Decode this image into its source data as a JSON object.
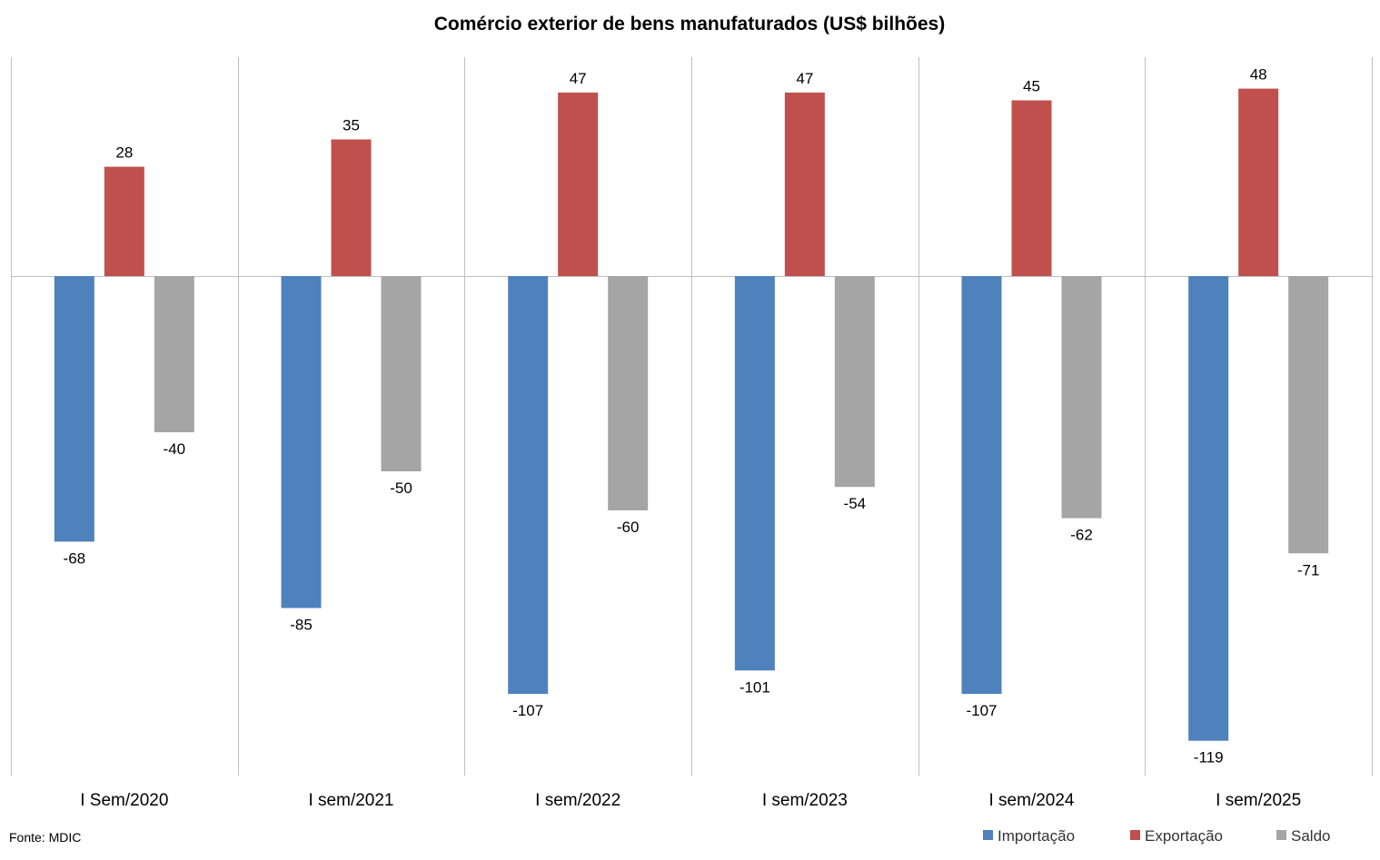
{
  "chart_data": {
    "type": "bar",
    "title": "Comércio exterior de bens manufaturados (US$ bilhões)",
    "xlabel": "",
    "ylabel": "",
    "categories": [
      "I Sem/2020",
      "I sem/2021",
      "I sem/2022",
      "I sem/2023",
      "I sem/2024",
      "I sem/2025"
    ],
    "series": [
      {
        "name": "Importação",
        "color": "#4F81BD",
        "values": [
          -68,
          -85,
          -107,
          -101,
          -107,
          -119
        ]
      },
      {
        "name": "Exportação",
        "color": "#C0504D",
        "values": [
          28,
          35,
          47,
          47,
          45,
          48
        ]
      },
      {
        "name": "Saldo",
        "color": "#A5A5A5",
        "values": [
          -40,
          -50,
          -60,
          -54,
          -62,
          -71
        ]
      }
    ],
    "ylim": [
      -128,
      56
    ],
    "grid": false,
    "data_labels": true,
    "legend_position": "bottom-right",
    "source": "Fonte: MDIC"
  }
}
